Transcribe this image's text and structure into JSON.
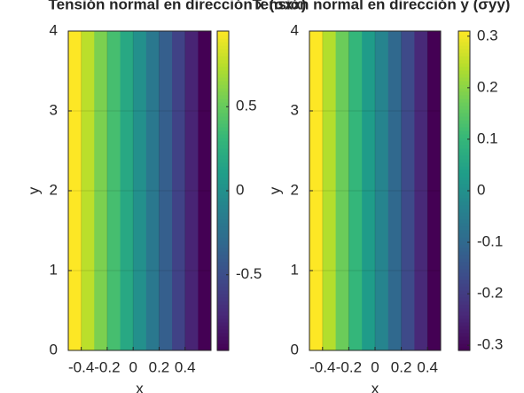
{
  "chart_data": [
    {
      "type": "heatmap",
      "title": "Tensión normal en dirección x (σxx)",
      "x_label": "x",
      "y_label": "y",
      "x": [
        -0.45,
        -0.35,
        -0.25,
        -0.15,
        -0.05,
        0.05,
        0.15,
        0.25,
        0.35,
        0.45,
        0.55
      ],
      "values": [
        0.95,
        0.76,
        0.57,
        0.38,
        0.19,
        0,
        -0.19,
        -0.38,
        -0.57,
        -0.76,
        -0.95
      ],
      "xlim": [
        -0.5,
        0.6
      ],
      "ylim": [
        0,
        4
      ],
      "xticks": [
        -0.4,
        -0.2,
        0,
        0.2,
        0.4
      ],
      "yticks": [
        0,
        1,
        2,
        3,
        4
      ],
      "clim": [
        -0.95,
        0.95
      ],
      "cticks": [
        -0.5,
        0,
        0.5
      ],
      "colormap": "viridis",
      "grid": true
    },
    {
      "type": "heatmap",
      "title": "Tensión normal en dirección y (σyy)",
      "x_label": "x",
      "y_label": "y",
      "x": [
        -0.45,
        -0.35,
        -0.25,
        -0.15,
        -0.05,
        0.05,
        0.15,
        0.25,
        0.35,
        0.45
      ],
      "values": [
        0.31,
        0.24,
        0.17,
        0.1,
        0.03,
        -0.03,
        -0.1,
        -0.17,
        -0.24,
        -0.31
      ],
      "xlim": [
        -0.5,
        0.5
      ],
      "ylim": [
        0,
        4
      ],
      "xticks": [
        -0.4,
        -0.2,
        0,
        0.2,
        0.4
      ],
      "yticks": [
        0,
        1,
        2,
        3,
        4
      ],
      "clim": [
        -0.31,
        0.31
      ],
      "cticks": [
        -0.3,
        -0.2,
        -0.1,
        0,
        0.1,
        0.2,
        0.3
      ],
      "colormap": "viridis",
      "grid": true
    }
  ]
}
